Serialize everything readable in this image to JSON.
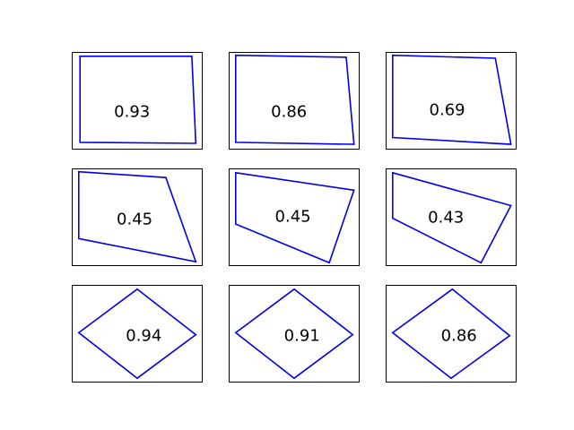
{
  "chart_data": {
    "type": "grid-of-shapes",
    "rows": 3,
    "cols": 3,
    "line_color": "#0000ee",
    "panels": [
      {
        "label": "0.93",
        "polygon": [
          [
            0.06,
            0.04
          ],
          [
            0.92,
            0.04
          ],
          [
            0.95,
            0.94
          ],
          [
            0.06,
            0.93
          ]
        ]
      },
      {
        "label": "0.86",
        "polygon": [
          [
            0.05,
            0.03
          ],
          [
            0.9,
            0.05
          ],
          [
            0.96,
            0.95
          ],
          [
            0.05,
            0.93
          ]
        ]
      },
      {
        "label": "0.69",
        "polygon": [
          [
            0.05,
            0.03
          ],
          [
            0.84,
            0.06
          ],
          [
            0.96,
            0.95
          ],
          [
            0.05,
            0.88
          ]
        ]
      },
      {
        "label": "0.45",
        "polygon": [
          [
            0.05,
            0.03
          ],
          [
            0.72,
            0.09
          ],
          [
            0.95,
            0.96
          ],
          [
            0.05,
            0.72
          ]
        ]
      },
      {
        "label": "0.45",
        "polygon": [
          [
            0.05,
            0.04
          ],
          [
            0.96,
            0.22
          ],
          [
            0.77,
            0.97
          ],
          [
            0.05,
            0.57
          ]
        ]
      },
      {
        "label": "0.43",
        "polygon": [
          [
            0.05,
            0.04
          ],
          [
            0.96,
            0.38
          ],
          [
            0.73,
            0.97
          ],
          [
            0.05,
            0.51
          ]
        ]
      },
      {
        "label": "0.94",
        "polygon": [
          [
            0.05,
            0.49
          ],
          [
            0.5,
            0.04
          ],
          [
            0.95,
            0.51
          ],
          [
            0.5,
            0.96
          ]
        ]
      },
      {
        "label": "0.91",
        "polygon": [
          [
            0.05,
            0.49
          ],
          [
            0.5,
            0.04
          ],
          [
            0.95,
            0.51
          ],
          [
            0.5,
            0.96
          ]
        ]
      },
      {
        "label": "0.86",
        "polygon": [
          [
            0.05,
            0.49
          ],
          [
            0.51,
            0.04
          ],
          [
            0.95,
            0.52
          ],
          [
            0.5,
            0.96
          ]
        ]
      }
    ]
  }
}
